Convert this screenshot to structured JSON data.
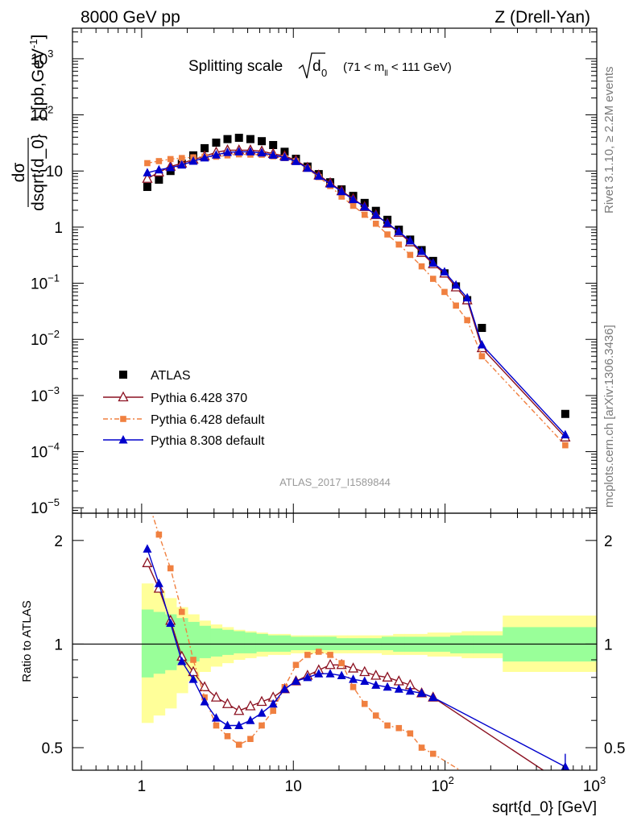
{
  "header": {
    "left": "8000 GeV pp",
    "right": "Z (Drell-Yan)"
  },
  "side_labels": {
    "rivet": "Rivet 3.1.10, ≥ 2.2M events",
    "source": "mcplots.cern.ch [arXiv:1306.3436]"
  },
  "chart_data": [
    {
      "type": "scatter",
      "panel": "main",
      "title_text": "Splitting scale",
      "title_sqrt": "d",
      "title_sub": "0",
      "title_range_prefix": "(71 < m",
      "title_range_sub": "ll",
      "title_range_suffix": " < 111 GeV)",
      "ylabel": "dσ/dsqrt{d_0} [pb,GeV⁻¹]",
      "ylabel_num": "dσ",
      "ylabel_den": "dsqrt{d_0}",
      "ylabel_unit": "} [pb,GeV",
      "ylabel_unit_sup": "-1",
      "ylabel_unit_end": "]",
      "x_scale": "log",
      "y_scale": "log",
      "xlim": [
        0.35,
        1000
      ],
      "ylim": [
        8e-06,
        3500
      ],
      "y_ticks": [
        {
          "v": 1000,
          "base": "10",
          "exp": "3"
        },
        {
          "v": 100,
          "base": "10",
          "exp": "2"
        },
        {
          "v": 10,
          "base": "10",
          "exp": ""
        },
        {
          "v": 1,
          "base": "1",
          "exp": ""
        },
        {
          "v": 0.1,
          "base": "10",
          "exp": "−1"
        },
        {
          "v": 0.01,
          "base": "10",
          "exp": "−2"
        },
        {
          "v": 0.001,
          "base": "10",
          "exp": "−3"
        },
        {
          "v": 0.0001,
          "base": "10",
          "exp": "−4"
        },
        {
          "v": 1e-05,
          "base": "10",
          "exp": "−5"
        }
      ],
      "watermark": "ATLAS_2017_I1589844",
      "legend_position": "lower-left",
      "series": [
        {
          "name": "ATLAS",
          "marker": "square",
          "color": "#000000",
          "x": [
            1.09,
            1.3,
            1.55,
            1.84,
            2.19,
            2.6,
            3.1,
            3.68,
            4.38,
            5.21,
            6.19,
            7.36,
            8.76,
            10.4,
            12.4,
            14.7,
            17.5,
            20.8,
            24.8,
            29.5,
            35.0,
            41.7,
            49.6,
            58.9,
            70.1,
            83.4,
            99.2,
            118.0,
            140.0,
            175.0,
            620.0
          ],
          "y": [
            5.2,
            7.0,
            10.0,
            13.5,
            19.0,
            25.5,
            32.0,
            37.0,
            39.0,
            37.0,
            34.0,
            29.0,
            22.0,
            16.5,
            12.0,
            8.8,
            6.3,
            4.7,
            3.6,
            2.7,
            1.95,
            1.35,
            0.9,
            0.6,
            0.39,
            0.25,
            0.15,
            0.088,
            0.05,
            0.016,
            0.00047
          ]
        },
        {
          "name": "Pythia 6.428 370",
          "marker": "triangle-open",
          "color": "#8b1020",
          "x": [
            1.09,
            1.3,
            1.55,
            1.84,
            2.19,
            2.6,
            3.1,
            3.68,
            4.38,
            5.21,
            6.19,
            7.36,
            8.76,
            10.4,
            12.4,
            14.7,
            17.5,
            20.8,
            24.8,
            29.5,
            35.0,
            41.7,
            49.6,
            58.9,
            70.1,
            83.4,
            99.2,
            118.0,
            140.0,
            175.0,
            620.0
          ],
          "y": [
            7.3,
            9.5,
            12.0,
            13.7,
            16.0,
            18.3,
            21.5,
            23.5,
            23.5,
            23.5,
            22.5,
            20.3,
            18.5,
            15.5,
            11.5,
            8.4,
            6.1,
            4.4,
            3.2,
            2.3,
            1.65,
            1.16,
            0.8,
            0.54,
            0.35,
            0.22,
            0.15,
            0.085,
            0.05,
            0.007,
            0.00018
          ]
        },
        {
          "name": "Pythia 6.428 default",
          "marker": "square-small",
          "color": "#f08040",
          "dash": true,
          "x": [
            1.09,
            1.3,
            1.55,
            1.84,
            2.19,
            2.6,
            3.1,
            3.68,
            4.38,
            5.21,
            6.19,
            7.36,
            8.76,
            10.4,
            12.4,
            14.7,
            17.5,
            20.8,
            24.8,
            29.5,
            35.0,
            41.7,
            49.6,
            58.9,
            70.1,
            83.4,
            99.2,
            118.0,
            140.0,
            175.0,
            620.0
          ],
          "y": [
            13.8,
            15.0,
            16.3,
            17.0,
            17.5,
            18.0,
            18.0,
            19.0,
            19.8,
            19.6,
            19.5,
            18.3,
            17.0,
            14.9,
            11.0,
            7.8,
            5.4,
            3.5,
            2.4,
            1.66,
            1.15,
            0.74,
            0.49,
            0.32,
            0.2,
            0.12,
            0.07,
            0.04,
            0.022,
            0.005,
            0.00013
          ]
        },
        {
          "name": "Pythia 8.308 default",
          "marker": "triangle",
          "color": "#0000cc",
          "x": [
            1.09,
            1.3,
            1.55,
            1.84,
            2.19,
            2.6,
            3.1,
            3.68,
            4.38,
            5.21,
            6.19,
            7.36,
            8.76,
            10.4,
            12.4,
            14.7,
            17.5,
            20.8,
            24.8,
            29.5,
            35.0,
            41.7,
            49.6,
            58.9,
            70.1,
            83.4,
            99.2,
            118.0,
            140.0,
            175.0,
            620.0
          ],
          "y": [
            9.3,
            10.5,
            11.5,
            12.8,
            15.0,
            17.2,
            19.4,
            21.5,
            22.0,
            22.0,
            21.0,
            19.2,
            17.5,
            14.8,
            11.2,
            8.1,
            5.9,
            4.3,
            3.1,
            2.3,
            1.65,
            1.17,
            0.83,
            0.57,
            0.37,
            0.23,
            0.16,
            0.093,
            0.055,
            0.008,
            0.0002
          ]
        }
      ]
    },
    {
      "type": "line",
      "panel": "ratio",
      "ylabel": "Ratio to ATLAS",
      "xlabel": "sqrt{d_0} [GeV]",
      "x_scale": "log",
      "y_scale": "log",
      "xlim": [
        0.35,
        1000
      ],
      "ylim": [
        0.43,
        2.4
      ],
      "x_ticks": [
        {
          "v": 1,
          "base": "1",
          "exp": ""
        },
        {
          "v": 10,
          "base": "10",
          "exp": ""
        },
        {
          "v": 100,
          "base": "10",
          "exp": "2"
        },
        {
          "v": 1000,
          "base": "10",
          "exp": "3"
        }
      ],
      "y_ticks": [
        {
          "v": 0.5,
          "label": "0.5"
        },
        {
          "v": 1,
          "label": "1"
        },
        {
          "v": 2,
          "label": "2"
        }
      ],
      "reference": 1,
      "bands": {
        "edges": [
          1.0,
          1.19,
          1.42,
          1.69,
          2.01,
          2.39,
          2.84,
          3.38,
          4.02,
          4.78,
          5.68,
          6.76,
          8.04,
          9.56,
          11.37,
          13.52,
          16.08,
          19.12,
          22.74,
          27.04,
          32.16,
          38.24,
          45.48,
          54.08,
          64.32,
          76.5,
          91.0,
          108.2,
          128.7,
          153.0,
          240.0,
          1000.0
        ],
        "stat_color": "#99ff99",
        "total_color": "#ffff99",
        "inner_up": [
          1.26,
          1.24,
          1.22,
          1.19,
          1.16,
          1.13,
          1.11,
          1.1,
          1.09,
          1.08,
          1.07,
          1.06,
          1.06,
          1.05,
          1.05,
          1.05,
          1.05,
          1.04,
          1.04,
          1.04,
          1.04,
          1.05,
          1.05,
          1.05,
          1.05,
          1.05,
          1.05,
          1.06,
          1.06,
          1.06,
          1.12
        ],
        "inner_dn": [
          0.8,
          0.82,
          0.84,
          0.87,
          0.89,
          0.91,
          0.92,
          0.93,
          0.94,
          0.94,
          0.95,
          0.95,
          0.95,
          0.96,
          0.96,
          0.96,
          0.96,
          0.96,
          0.96,
          0.96,
          0.96,
          0.96,
          0.95,
          0.95,
          0.95,
          0.95,
          0.95,
          0.94,
          0.94,
          0.94,
          0.89
        ],
        "outer_up": [
          1.5,
          1.43,
          1.36,
          1.28,
          1.22,
          1.17,
          1.14,
          1.12,
          1.1,
          1.09,
          1.08,
          1.07,
          1.07,
          1.06,
          1.06,
          1.06,
          1.06,
          1.06,
          1.06,
          1.06,
          1.06,
          1.06,
          1.07,
          1.07,
          1.07,
          1.08,
          1.08,
          1.08,
          1.09,
          1.09,
          1.21
        ],
        "outer_dn": [
          0.59,
          0.62,
          0.65,
          0.72,
          0.78,
          0.83,
          0.86,
          0.88,
          0.9,
          0.91,
          0.92,
          0.93,
          0.93,
          0.94,
          0.94,
          0.94,
          0.94,
          0.94,
          0.94,
          0.94,
          0.94,
          0.93,
          0.93,
          0.93,
          0.93,
          0.92,
          0.92,
          0.92,
          0.91,
          0.91,
          0.83
        ]
      },
      "series": [
        {
          "name": "Pythia 6.428 370",
          "marker": "triangle-open",
          "color": "#8b1020",
          "x": [
            1.09,
            1.3,
            1.55,
            1.84,
            2.19,
            2.6,
            3.1,
            3.68,
            4.38,
            5.21,
            6.19,
            7.36,
            8.76,
            10.4,
            12.4,
            14.7,
            17.5,
            20.8,
            24.8,
            29.5,
            35.0,
            41.7,
            49.6,
            58.9,
            70.1,
            83.4,
            620.0
          ],
          "y": [
            1.72,
            1.45,
            1.17,
            0.92,
            0.83,
            0.75,
            0.7,
            0.67,
            0.64,
            0.66,
            0.68,
            0.7,
            0.74,
            0.78,
            0.81,
            0.84,
            0.87,
            0.87,
            0.85,
            0.83,
            0.81,
            0.8,
            0.78,
            0.76,
            0.72,
            0.7,
            0.39
          ]
        },
        {
          "name": "Pythia 6.428 default",
          "marker": "square-small",
          "color": "#f08040",
          "dash": true,
          "x": [
            1.09,
            1.3,
            1.55,
            1.84,
            2.19,
            2.6,
            3.1,
            3.68,
            4.38,
            5.21,
            6.19,
            7.36,
            8.76,
            10.4,
            12.4,
            14.7,
            17.5,
            20.8,
            24.8,
            29.5,
            35.0,
            41.7,
            49.6,
            58.9,
            70.1,
            83.4,
            620.0
          ],
          "y": [
            2.65,
            2.08,
            1.66,
            1.24,
            0.9,
            0.7,
            0.58,
            0.54,
            0.51,
            0.53,
            0.58,
            0.64,
            0.75,
            0.87,
            0.93,
            0.95,
            0.93,
            0.88,
            0.75,
            0.67,
            0.62,
            0.58,
            0.57,
            0.55,
            0.5,
            0.48,
            0.28
          ]
        },
        {
          "name": "Pythia 8.308 default",
          "marker": "triangle",
          "color": "#0000cc",
          "x": [
            1.09,
            1.3,
            1.55,
            1.84,
            2.19,
            2.6,
            3.1,
            3.68,
            4.38,
            5.21,
            6.19,
            7.36,
            8.76,
            10.4,
            12.4,
            14.7,
            17.5,
            20.8,
            24.8,
            29.5,
            35.0,
            41.7,
            49.6,
            58.9,
            70.1,
            83.4,
            620.0
          ],
          "y": [
            1.89,
            1.5,
            1.15,
            0.89,
            0.79,
            0.68,
            0.61,
            0.58,
            0.58,
            0.6,
            0.63,
            0.67,
            0.74,
            0.78,
            0.8,
            0.82,
            0.82,
            0.81,
            0.79,
            0.78,
            0.76,
            0.75,
            0.74,
            0.73,
            0.72,
            0.7,
            0.44
          ]
        }
      ]
    }
  ]
}
